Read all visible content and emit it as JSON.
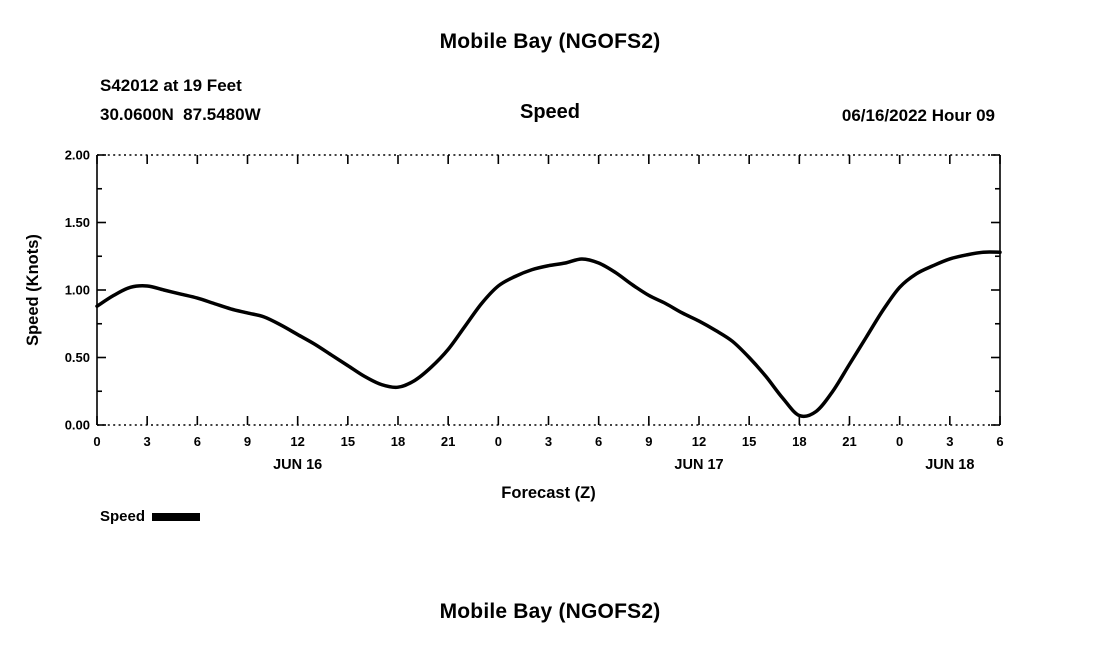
{
  "page": {
    "title_top": "Mobile Bay (NGOFS2)",
    "title_bottom": "Mobile Bay (NGOFS2)"
  },
  "header": {
    "station_line1": "S42012 at 19 Feet",
    "station_line2": "30.0600N  87.5480W",
    "plot_label": "Speed",
    "datetime_label": "06/16/2022 Hour 09"
  },
  "legend": {
    "label": "Speed"
  },
  "chart_data": {
    "type": "line",
    "title": "Speed",
    "xlabel": "Forecast (Z)",
    "ylabel": "Speed (Knots)",
    "xlim": [
      0,
      54
    ],
    "ylim": [
      0,
      2.0
    ],
    "line_color": "#000000",
    "line_width": 3.5,
    "grid": "dotted top and bottom borders only",
    "legend_position": "below-left",
    "y_ticks": [
      {
        "value": 0.0,
        "label": "0.00"
      },
      {
        "value": 0.5,
        "label": "0.50"
      },
      {
        "value": 1.0,
        "label": "1.00"
      },
      {
        "value": 1.5,
        "label": "1.50"
      },
      {
        "value": 2.0,
        "label": "2.00"
      }
    ],
    "y_minor_ticks": [
      0.25,
      0.75,
      1.25,
      1.75
    ],
    "x_ticks": [
      {
        "hour": 0,
        "label": "0"
      },
      {
        "hour": 3,
        "label": "3"
      },
      {
        "hour": 6,
        "label": "6"
      },
      {
        "hour": 9,
        "label": "9"
      },
      {
        "hour": 12,
        "label": "12"
      },
      {
        "hour": 15,
        "label": "15"
      },
      {
        "hour": 18,
        "label": "18"
      },
      {
        "hour": 21,
        "label": "21"
      },
      {
        "hour": 24,
        "label": "0"
      },
      {
        "hour": 27,
        "label": "3"
      },
      {
        "hour": 30,
        "label": "6"
      },
      {
        "hour": 33,
        "label": "9"
      },
      {
        "hour": 36,
        "label": "12"
      },
      {
        "hour": 39,
        "label": "15"
      },
      {
        "hour": 42,
        "label": "18"
      },
      {
        "hour": 45,
        "label": "21"
      },
      {
        "hour": 48,
        "label": "0"
      },
      {
        "hour": 51,
        "label": "3"
      },
      {
        "hour": 54,
        "label": "6"
      }
    ],
    "date_labels": [
      {
        "hour": 12,
        "label": "JUN 16"
      },
      {
        "hour": 36,
        "label": "JUN 17"
      },
      {
        "hour": 51,
        "label": "JUN 18"
      }
    ],
    "series": [
      {
        "name": "Speed",
        "x": [
          0,
          1,
          2,
          3,
          4,
          5,
          6,
          7,
          8,
          9,
          10,
          11,
          12,
          13,
          14,
          15,
          16,
          17,
          18,
          19,
          20,
          21,
          22,
          23,
          24,
          25,
          26,
          27,
          28,
          29,
          30,
          31,
          32,
          33,
          34,
          35,
          36,
          37,
          38,
          39,
          40,
          41,
          42,
          43,
          44,
          45,
          46,
          47,
          48,
          49,
          50,
          51,
          52,
          53,
          54
        ],
        "y": [
          0.88,
          0.96,
          1.02,
          1.03,
          1.0,
          0.97,
          0.94,
          0.9,
          0.86,
          0.83,
          0.8,
          0.74,
          0.67,
          0.6,
          0.52,
          0.44,
          0.36,
          0.3,
          0.28,
          0.33,
          0.43,
          0.56,
          0.73,
          0.9,
          1.03,
          1.1,
          1.15,
          1.18,
          1.2,
          1.23,
          1.2,
          1.13,
          1.04,
          0.96,
          0.9,
          0.83,
          0.77,
          0.7,
          0.62,
          0.5,
          0.36,
          0.2,
          0.07,
          0.1,
          0.25,
          0.45,
          0.65,
          0.85,
          1.02,
          1.12,
          1.18,
          1.23,
          1.26,
          1.28,
          1.28
        ]
      }
    ]
  }
}
